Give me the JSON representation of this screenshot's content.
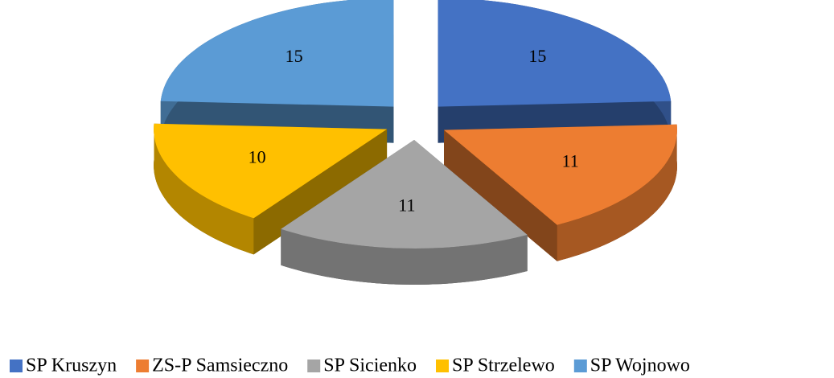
{
  "chart_data": {
    "type": "pie",
    "categories": [
      "SP Kruszyn",
      "ZS-P Samsieczno",
      "SP Sicienko",
      "SP Strzelewo",
      "SP Wojnowo"
    ],
    "values": [
      15,
      11,
      11,
      10,
      15
    ],
    "colors": [
      "#4472c4",
      "#ed7d31",
      "#a5a5a5",
      "#ffc000",
      "#5b9bd5"
    ],
    "legend": "bottom"
  }
}
